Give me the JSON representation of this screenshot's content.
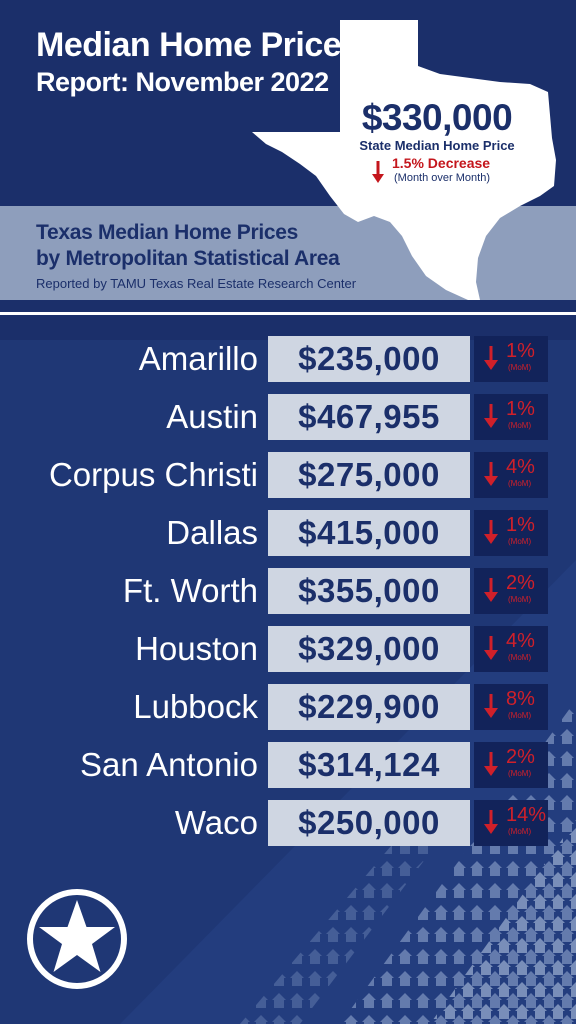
{
  "header": {
    "title_line1": "Median Home Price",
    "title_line2": "Report: November 2022"
  },
  "state": {
    "price": "$330,000",
    "label": "State Median Home Price",
    "change": "1.5% Decrease",
    "period": "(Month over Month)"
  },
  "section": {
    "title_line1": "Texas Median Home Prices",
    "title_line2": "by Metropolitan Statistical Area",
    "source": "Reported by TAMU Texas Real Estate Research Center"
  },
  "colors": {
    "navy": "#1b2f6a",
    "band": "#8e9ebc",
    "price_box": "#cfd6e2",
    "decrease_red": "#d0202a"
  },
  "metros": [
    {
      "city": "Amarillo",
      "price": "$235,000",
      "change": "1%",
      "period": "(MoM)"
    },
    {
      "city": "Austin",
      "price": "$467,955",
      "change": "1%",
      "period": "(MoM)"
    },
    {
      "city": "Corpus Christi",
      "price": "$275,000",
      "change": "4%",
      "period": "(MoM)"
    },
    {
      "city": "Dallas",
      "price": "$415,000",
      "change": "1%",
      "period": "(MoM)"
    },
    {
      "city": "Ft. Worth",
      "price": "$355,000",
      "change": "2%",
      "period": "(MoM)"
    },
    {
      "city": "Houston",
      "price": "$329,000",
      "change": "4%",
      "period": "(MoM)"
    },
    {
      "city": "Lubbock",
      "price": "$229,900",
      "change": "8%",
      "period": "(MoM)"
    },
    {
      "city": "San Antonio",
      "price": "$314,124",
      "change": "2%",
      "period": "(MoM)"
    },
    {
      "city": "Waco",
      "price": "$250,000",
      "change": "14%",
      "period": "(MoM)"
    }
  ]
}
